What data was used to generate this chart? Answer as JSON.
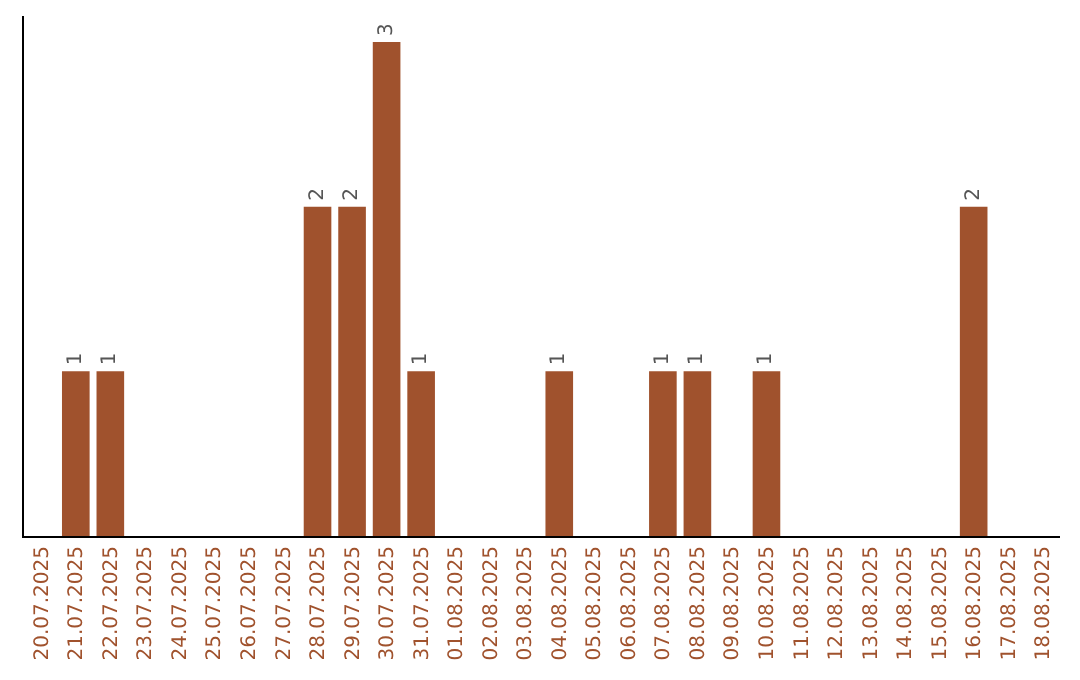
{
  "chart_data": {
    "type": "bar",
    "categories": [
      "20.07.2025",
      "21.07.2025",
      "22.07.2025",
      "23.07.2025",
      "24.07.2025",
      "25.07.2025",
      "26.07.2025",
      "27.07.2025",
      "28.07.2025",
      "29.07.2025",
      "30.07.2025",
      "31.07.2025",
      "01.08.2025",
      "02.08.2025",
      "03.08.2025",
      "04.08.2025",
      "05.08.2025",
      "06.08.2025",
      "07.08.2025",
      "08.08.2025",
      "09.08.2025",
      "10.08.2025",
      "11.08.2025",
      "12.08.2025",
      "13.08.2025",
      "14.08.2025",
      "15.08.2025",
      "16.08.2025",
      "17.08.2025",
      "18.08.2025"
    ],
    "values": [
      0,
      1,
      1,
      0,
      0,
      0,
      0,
      0,
      2,
      2,
      3,
      1,
      0,
      0,
      0,
      1,
      0,
      0,
      1,
      1,
      0,
      1,
      0,
      0,
      0,
      0,
      0,
      2,
      0,
      0
    ],
    "value_labels": [
      null,
      "1",
      "1",
      null,
      null,
      null,
      null,
      null,
      "2",
      "2",
      "3",
      "1",
      null,
      null,
      null,
      "1",
      null,
      null,
      "1",
      "1",
      null,
      "1",
      null,
      null,
      null,
      null,
      null,
      "2",
      null,
      null
    ],
    "color": "#a0522d",
    "tick_labels": "x",
    "grid": false,
    "legend": false
  }
}
